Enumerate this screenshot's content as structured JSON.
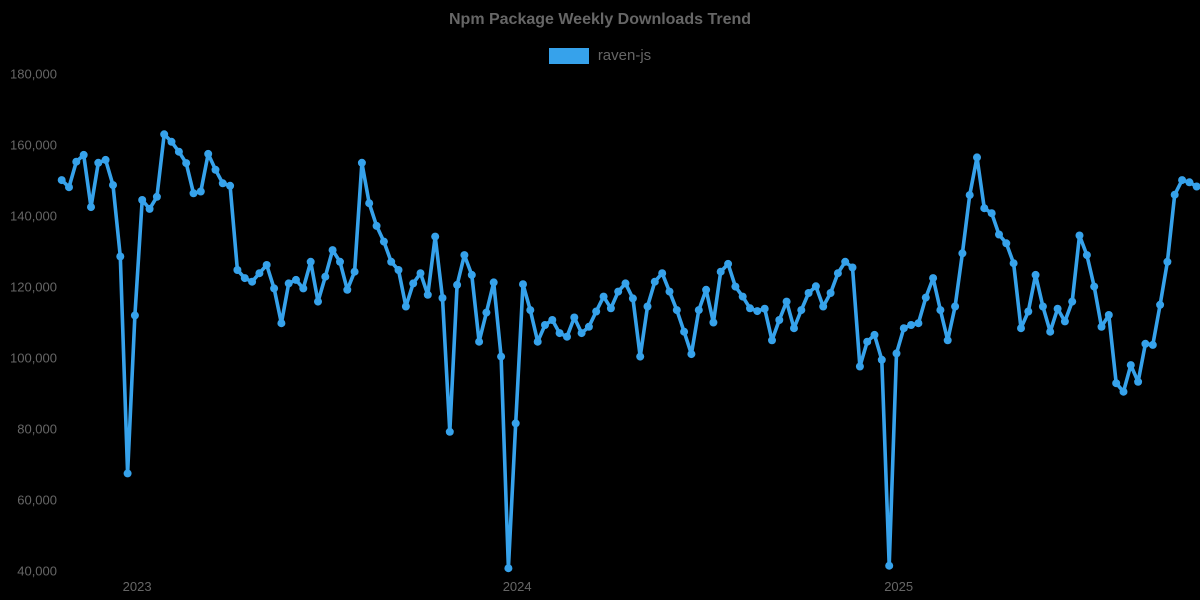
{
  "title": "Npm Package Weekly Downloads Trend",
  "legend": {
    "items": [
      {
        "label": "raven-js",
        "color": "#36a2eb"
      }
    ]
  },
  "colors": {
    "background": "#000000",
    "text": "#666666",
    "line": "#36a2eb"
  },
  "chart_data": {
    "type": "line",
    "title": "Npm Package Weekly Downloads Trend",
    "x_unit": "week",
    "grid": false,
    "legend_position": "top",
    "points_shown": true,
    "ylim": [
      40000,
      180000
    ],
    "y_ticks": [
      {
        "value": 180000,
        "label": "180,000"
      },
      {
        "value": 160000,
        "label": "160,000"
      },
      {
        "value": 140000,
        "label": "140,000"
      },
      {
        "value": 120000,
        "label": "120,000"
      },
      {
        "value": 100000,
        "label": "100,000"
      },
      {
        "value": 80000,
        "label": "80,000"
      },
      {
        "value": 60000,
        "label": "60,000"
      },
      {
        "value": 40000,
        "label": "40,000"
      }
    ],
    "x_ticks": [
      {
        "label": "2023",
        "week": 10.3
      },
      {
        "label": "2024",
        "week": 62.2
      },
      {
        "label": "2025",
        "week": 114.3
      }
    ],
    "series": [
      {
        "name": "raven-js",
        "color": "#36a2eb",
        "values": [
          150100,
          148100,
          155300,
          157200,
          142500,
          155000,
          155800,
          148700,
          128600,
          67500,
          112000,
          144500,
          142000,
          145400,
          163000,
          160900,
          158100,
          154900,
          146400,
          146900,
          157500,
          153000,
          149200,
          148500,
          124800,
          122500,
          121500,
          123900,
          126200,
          119600,
          109800,
          121000,
          122000,
          119600,
          127100,
          115900,
          122900,
          130400,
          127100,
          119200,
          124300,
          155000,
          143600,
          137200,
          132800,
          127100,
          124800,
          114500,
          121000,
          123900,
          117800,
          134200,
          116900,
          79200,
          120600,
          129000,
          123400,
          104600,
          112800,
          121300,
          100400,
          40800,
          81600,
          120800,
          113500,
          104600,
          109300,
          110700,
          107000,
          106000,
          111400,
          107000,
          108800,
          113100,
          117300,
          114000,
          118700,
          121000,
          116800,
          100400,
          114500,
          121500,
          123900,
          118700,
          113500,
          107400,
          101100,
          113500,
          119200,
          110000,
          124300,
          126500,
          120100,
          117300,
          114000,
          113200,
          113900,
          105000,
          110700,
          115900,
          108400,
          113500,
          118300,
          120200,
          114500,
          118300,
          123900,
          127100,
          125500,
          97600,
          104600,
          106500,
          99500,
          41500,
          101300,
          108400,
          109300,
          109800,
          117000,
          122500,
          113500,
          105000,
          114500,
          129500,
          145900,
          156500,
          142200,
          140800,
          134800,
          132300,
          126700,
          108400,
          113100,
          123400,
          114500,
          107400,
          113900,
          110300,
          115900,
          134500,
          129000,
          120100,
          108800,
          112100,
          92900,
          90500,
          98000,
          93300,
          104000,
          103700,
          115000,
          127100,
          146000,
          150100,
          149500,
          148300
        ]
      }
    ]
  }
}
